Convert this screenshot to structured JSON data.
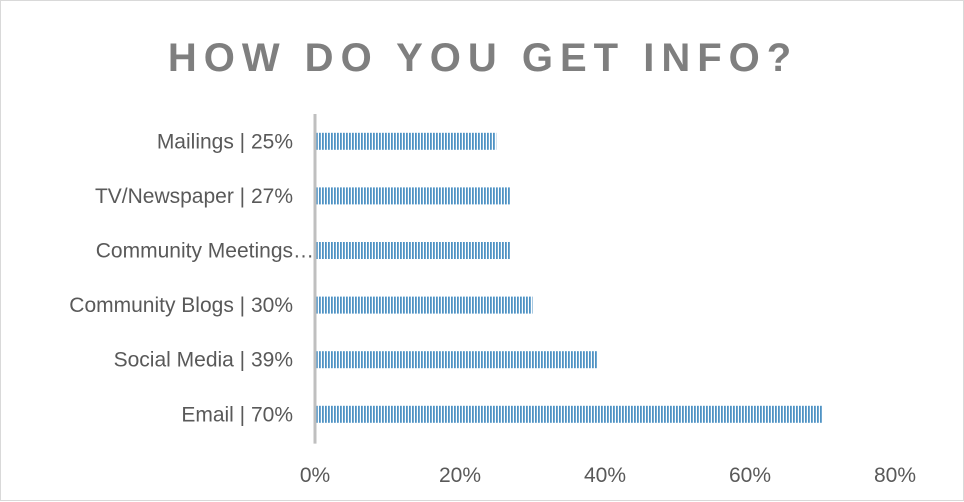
{
  "chart_data": {
    "type": "bar",
    "orientation": "horizontal",
    "title": "HOW DO YOU GET INFO?",
    "categories": [
      "Mailings | 25%",
      "TV/Newspaper | 27%",
      "Community Meetings…",
      "Community Blogs | 30%",
      "Social Media | 39%",
      "Email | 70%"
    ],
    "values": [
      25,
      27,
      27,
      30,
      39,
      70
    ],
    "xlim": [
      0,
      80
    ],
    "xticks": [
      0,
      20,
      40,
      60,
      80
    ],
    "xtick_labels": [
      "0%",
      "20%",
      "40%",
      "60%",
      "80%"
    ],
    "bar_color": "#4f93c4",
    "bar_pattern": "vertical-stripes",
    "grid": false,
    "legend": "none"
  }
}
